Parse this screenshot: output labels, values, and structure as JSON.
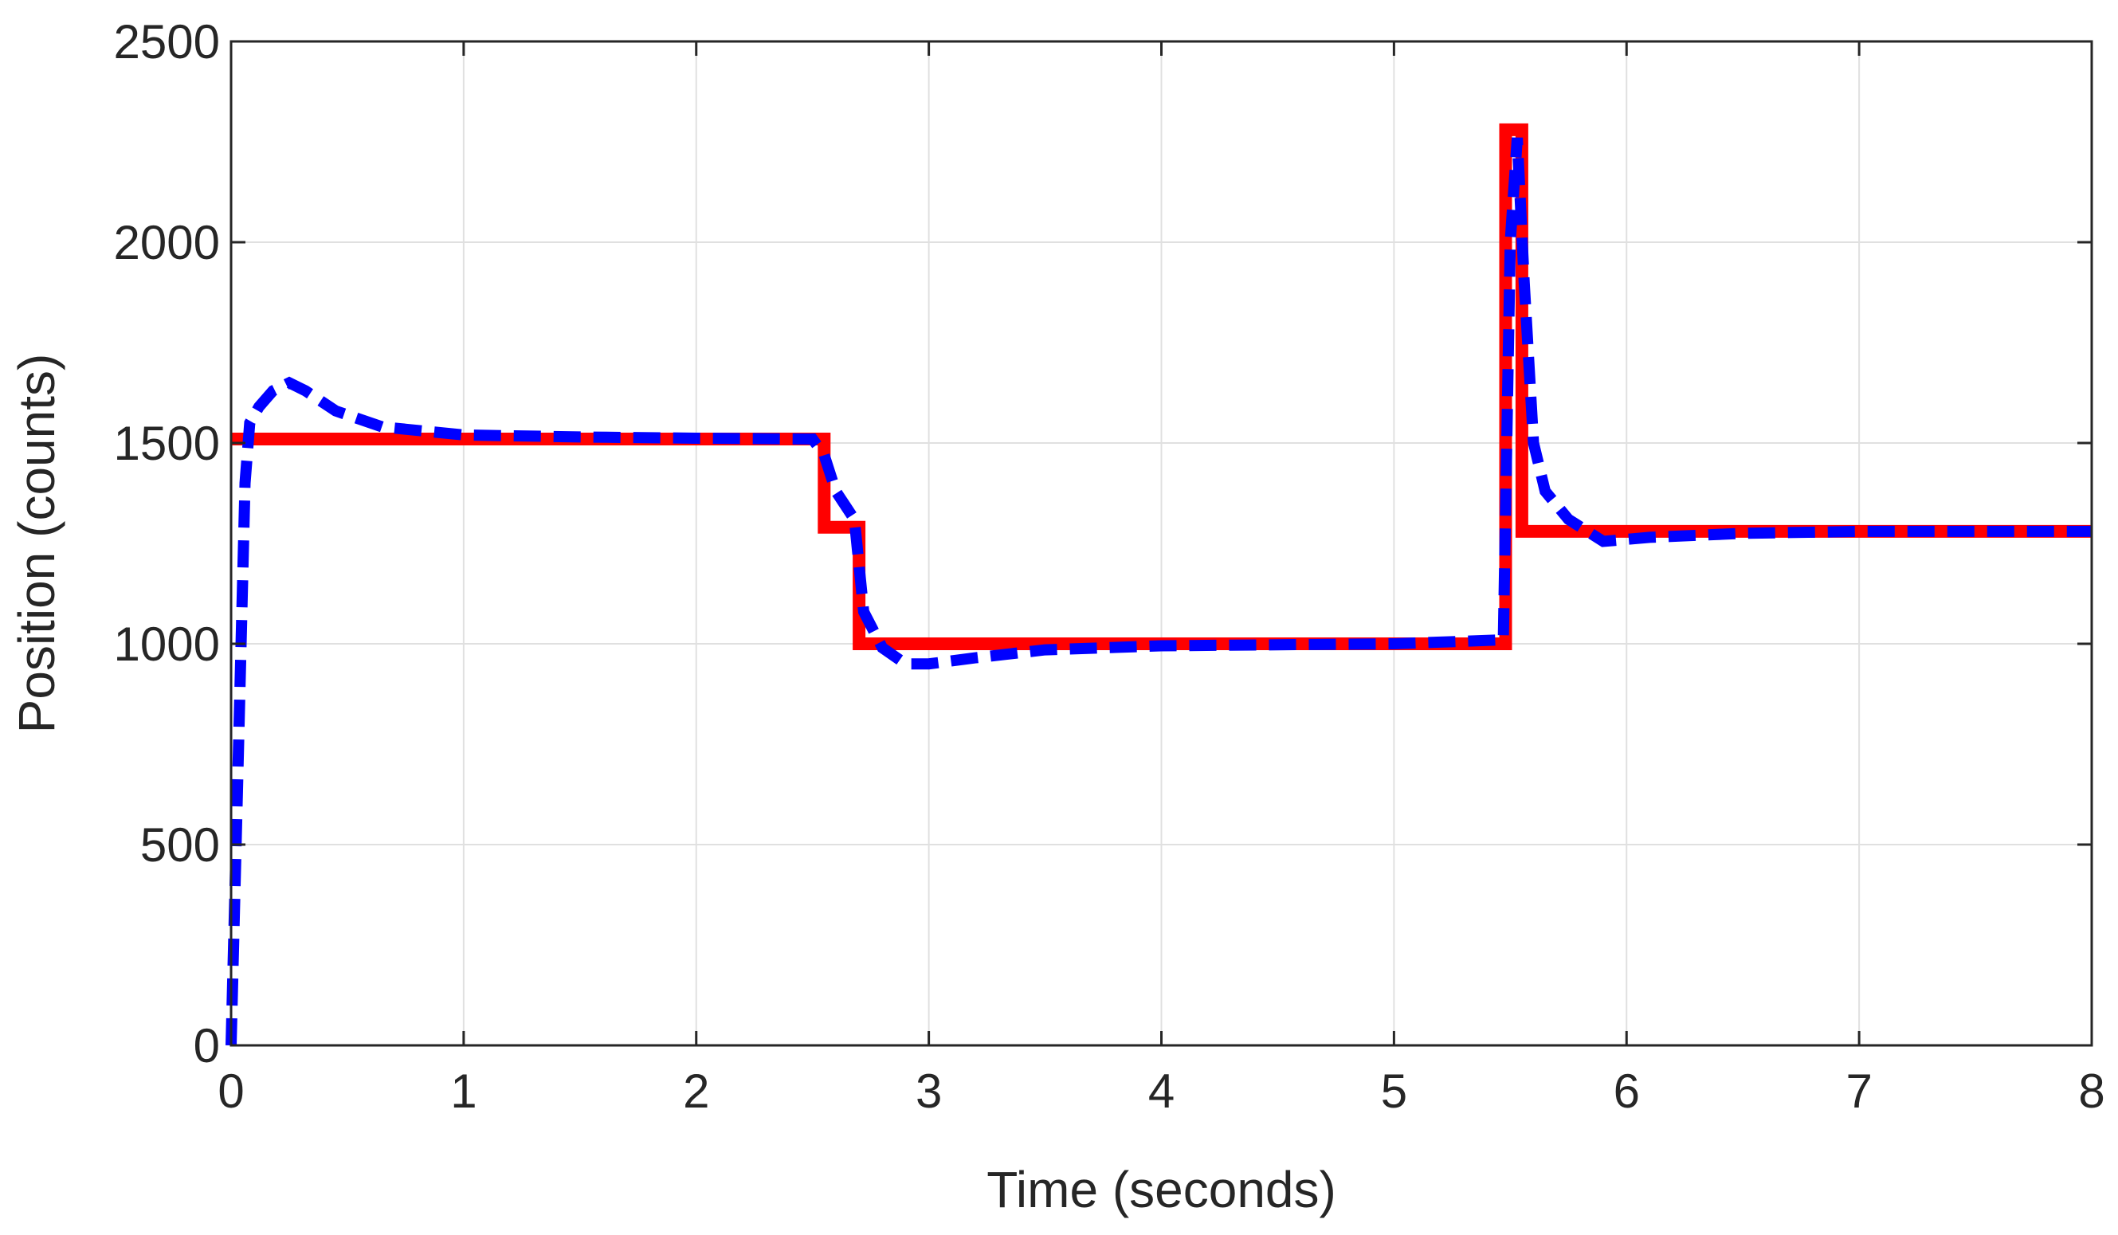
{
  "chart_data": {
    "type": "line",
    "xlabel": "Time (seconds)",
    "ylabel": "Position (counts)",
    "xlim": [
      0,
      8
    ],
    "ylim": [
      0,
      2500
    ],
    "xticks": [
      0,
      1,
      2,
      3,
      4,
      5,
      6,
      7,
      8
    ],
    "yticks": [
      0,
      500,
      1000,
      1500,
      2000,
      2500
    ],
    "grid": true,
    "legend": "none",
    "series": [
      {
        "style": "solid",
        "color": "#ff0000",
        "x": [
          0,
          2.55,
          2.55,
          2.7,
          2.7,
          5.48,
          5.48,
          5.55,
          5.55,
          8
        ],
        "y": [
          1510,
          1510,
          1290,
          1290,
          1000,
          1000,
          2280,
          2280,
          1280,
          1280
        ]
      },
      {
        "style": "dashed",
        "color": "#0000ff",
        "x": [
          0,
          0.03,
          0.06,
          0.08,
          0.12,
          0.18,
          0.25,
          0.32,
          0.45,
          0.65,
          1.0,
          1.5,
          2.0,
          2.5,
          2.55,
          2.6,
          2.68,
          2.72,
          2.8,
          2.9,
          3.0,
          3.2,
          3.5,
          4.0,
          5.0,
          5.47,
          5.5,
          5.53,
          5.56,
          5.6,
          5.65,
          5.75,
          5.9,
          6.1,
          6.5,
          7.0,
          8.0
        ],
        "y": [
          0,
          700,
          1400,
          1550,
          1590,
          1630,
          1650,
          1630,
          1580,
          1540,
          1520,
          1515,
          1512,
          1510,
          1470,
          1380,
          1310,
          1080,
          990,
          950,
          950,
          965,
          985,
          995,
          1000,
          1010,
          2000,
          2260,
          1900,
          1500,
          1380,
          1310,
          1255,
          1265,
          1275,
          1280,
          1280
        ]
      }
    ]
  }
}
